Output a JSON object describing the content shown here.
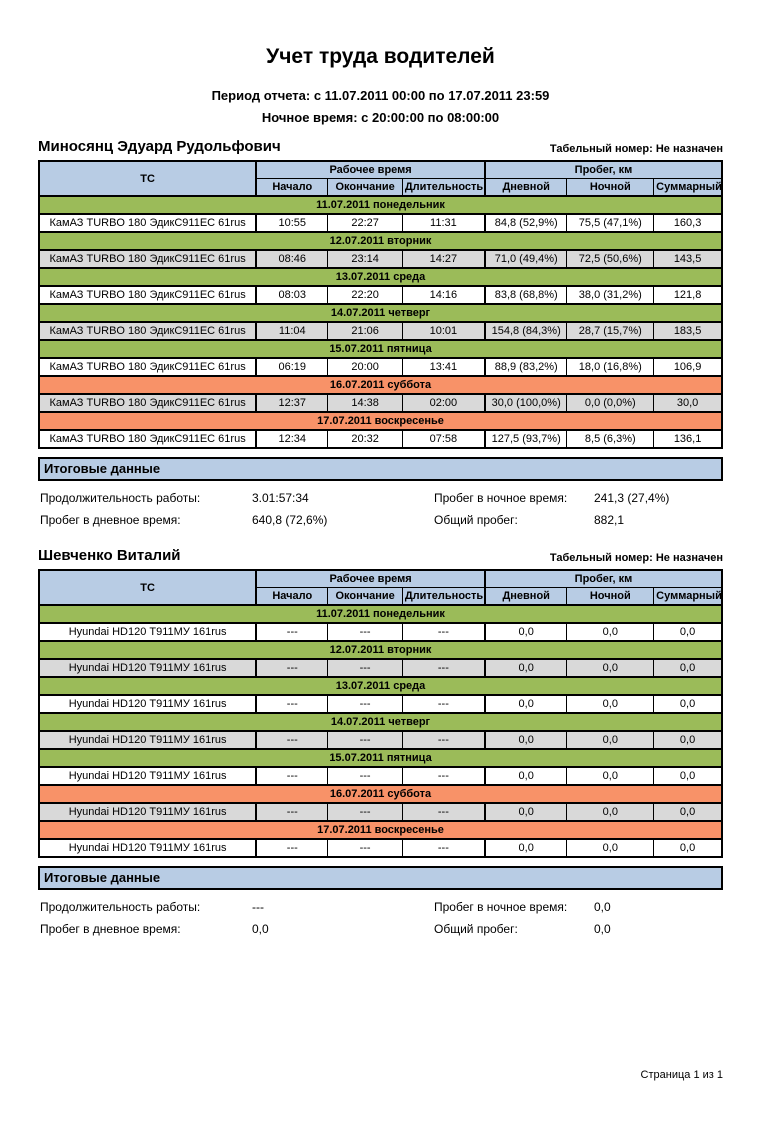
{
  "page": {
    "title": "Учет труда водителей",
    "period_line": "Период отчета: с 11.07.2011 00:00 по 17.07.2011 23:59",
    "night_line": "Ночное время: с 20:00:00 по 08:00:00",
    "footer": "Страница 1 из 1"
  },
  "table_headers": {
    "tc": "ТС",
    "work_time_group": "Рабочее время",
    "mileage_group": "Пробег, км",
    "start": "Начало",
    "end": "Окончание",
    "duration": "Длительность",
    "day": "Дневной",
    "night": "Ночной",
    "total": "Суммарный"
  },
  "summary_labels": {
    "title": "Итоговые данные",
    "work_duration": "Продолжительность работы:",
    "day_mileage": "Пробег в дневное время:",
    "night_mileage": "Пробег в ночное время:",
    "total_mileage": "Общий пробег:"
  },
  "colors": {
    "header_blue": "#b8cce4",
    "weekday_green": "#9bbb59",
    "weekend_orange": "#f89268",
    "row_grey": "#d9d9d9",
    "border_black": "#000000"
  },
  "drivers": [
    {
      "name": "Миносянц Эдуард Рудольфович",
      "personnel_number": "Табельный номер: Не назначен",
      "days": [
        {
          "date_label": "11.07.2011 понедельник",
          "weekend": false,
          "row": {
            "vehicle": "КамАЗ TURBO 180 ЭдикС911ЕС 61rus",
            "start": "10:55",
            "end": "22:27",
            "duration": "11:31",
            "day": "84,8 (52,9%)",
            "night": "75,5 (47,1%)",
            "total": "160,3"
          }
        },
        {
          "date_label": "12.07.2011 вторник",
          "weekend": false,
          "row": {
            "vehicle": "КамАЗ TURBO 180 ЭдикС911ЕС 61rus",
            "start": "08:46",
            "end": "23:14",
            "duration": "14:27",
            "day": "71,0 (49,4%)",
            "night": "72,5 (50,6%)",
            "total": "143,5"
          }
        },
        {
          "date_label": "13.07.2011 среда",
          "weekend": false,
          "row": {
            "vehicle": "КамАЗ TURBO 180 ЭдикС911ЕС 61rus",
            "start": "08:03",
            "end": "22:20",
            "duration": "14:16",
            "day": "83,8 (68,8%)",
            "night": "38,0 (31,2%)",
            "total": "121,8"
          }
        },
        {
          "date_label": "14.07.2011 четверг",
          "weekend": false,
          "row": {
            "vehicle": "КамАЗ TURBO 180 ЭдикС911ЕС 61rus",
            "start": "11:04",
            "end": "21:06",
            "duration": "10:01",
            "day": "154,8 (84,3%)",
            "night": "28,7 (15,7%)",
            "total": "183,5"
          }
        },
        {
          "date_label": "15.07.2011 пятница",
          "weekend": false,
          "row": {
            "vehicle": "КамАЗ TURBO 180 ЭдикС911ЕС 61rus",
            "start": "06:19",
            "end": "20:00",
            "duration": "13:41",
            "day": "88,9 (83,2%)",
            "night": "18,0 (16,8%)",
            "total": "106,9"
          }
        },
        {
          "date_label": "16.07.2011 суббота",
          "weekend": true,
          "row": {
            "vehicle": "КамАЗ TURBO 180 ЭдикС911ЕС 61rus",
            "start": "12:37",
            "end": "14:38",
            "duration": "02:00",
            "day": "30,0 (100,0%)",
            "night": "0,0 (0,0%)",
            "total": "30,0"
          }
        },
        {
          "date_label": "17.07.2011 воскресенье",
          "weekend": true,
          "row": {
            "vehicle": "КамАЗ TURBO 180 ЭдикС911ЕС 61rus",
            "start": "12:34",
            "end": "20:32",
            "duration": "07:58",
            "day": "127,5 (93,7%)",
            "night": "8,5 (6,3%)",
            "total": "136,1"
          }
        }
      ],
      "summary": {
        "work_duration": "3.01:57:34",
        "day_mileage": "640,8 (72,6%)",
        "night_mileage": "241,3 (27,4%)",
        "total_mileage": "882,1"
      }
    },
    {
      "name": "Шевченко Виталий",
      "personnel_number": "Табельный номер: Не назначен",
      "days": [
        {
          "date_label": "11.07.2011 понедельник",
          "weekend": false,
          "row": {
            "vehicle": "Hyundai HD120 Т911МУ 161rus",
            "start": "---",
            "end": "---",
            "duration": "---",
            "day": "0,0",
            "night": "0,0",
            "total": "0,0"
          }
        },
        {
          "date_label": "12.07.2011 вторник",
          "weekend": false,
          "row": {
            "vehicle": "Hyundai HD120 Т911МУ 161rus",
            "start": "---",
            "end": "---",
            "duration": "---",
            "day": "0,0",
            "night": "0,0",
            "total": "0,0"
          }
        },
        {
          "date_label": "13.07.2011 среда",
          "weekend": false,
          "row": {
            "vehicle": "Hyundai HD120 Т911МУ 161rus",
            "start": "---",
            "end": "---",
            "duration": "---",
            "day": "0,0",
            "night": "0,0",
            "total": "0,0"
          }
        },
        {
          "date_label": "14.07.2011 четверг",
          "weekend": false,
          "row": {
            "vehicle": "Hyundai HD120 Т911МУ 161rus",
            "start": "---",
            "end": "---",
            "duration": "---",
            "day": "0,0",
            "night": "0,0",
            "total": "0,0"
          }
        },
        {
          "date_label": "15.07.2011 пятница",
          "weekend": false,
          "row": {
            "vehicle": "Hyundai HD120 Т911МУ 161rus",
            "start": "---",
            "end": "---",
            "duration": "---",
            "day": "0,0",
            "night": "0,0",
            "total": "0,0"
          }
        },
        {
          "date_label": "16.07.2011 суббота",
          "weekend": true,
          "row": {
            "vehicle": "Hyundai HD120 Т911МУ 161rus",
            "start": "---",
            "end": "---",
            "duration": "---",
            "day": "0,0",
            "night": "0,0",
            "total": "0,0"
          }
        },
        {
          "date_label": "17.07.2011 воскресенье",
          "weekend": true,
          "row": {
            "vehicle": "Hyundai HD120 Т911МУ 161rus",
            "start": "---",
            "end": "---",
            "duration": "---",
            "day": "0,0",
            "night": "0,0",
            "total": "0,0"
          }
        }
      ],
      "summary": {
        "work_duration": "---",
        "day_mileage": "0,0",
        "night_mileage": "0,0",
        "total_mileage": "0,0"
      }
    }
  ]
}
